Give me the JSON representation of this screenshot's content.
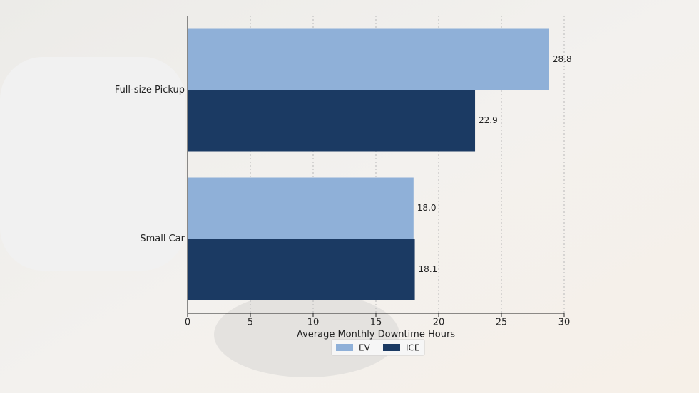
{
  "chart_data": {
    "type": "bar",
    "orientation": "horizontal",
    "x_label": "Average Monthly Downtime Hours",
    "categories": [
      "Full-size Pickup",
      "Small Car"
    ],
    "series": [
      {
        "name": "EV",
        "color": "#8fb0d8",
        "values": [
          28.8,
          18.0
        ],
        "value_labels": [
          "28.8",
          "18.0"
        ]
      },
      {
        "name": "ICE",
        "color": "#1b3a63",
        "values": [
          22.9,
          18.1
        ],
        "value_labels": [
          "22.9",
          "18.1"
        ]
      }
    ],
    "xlim": [
      0,
      30
    ],
    "xticks": [
      0,
      5,
      10,
      15,
      20,
      25,
      30
    ],
    "grid": true,
    "legend": "bottom"
  }
}
